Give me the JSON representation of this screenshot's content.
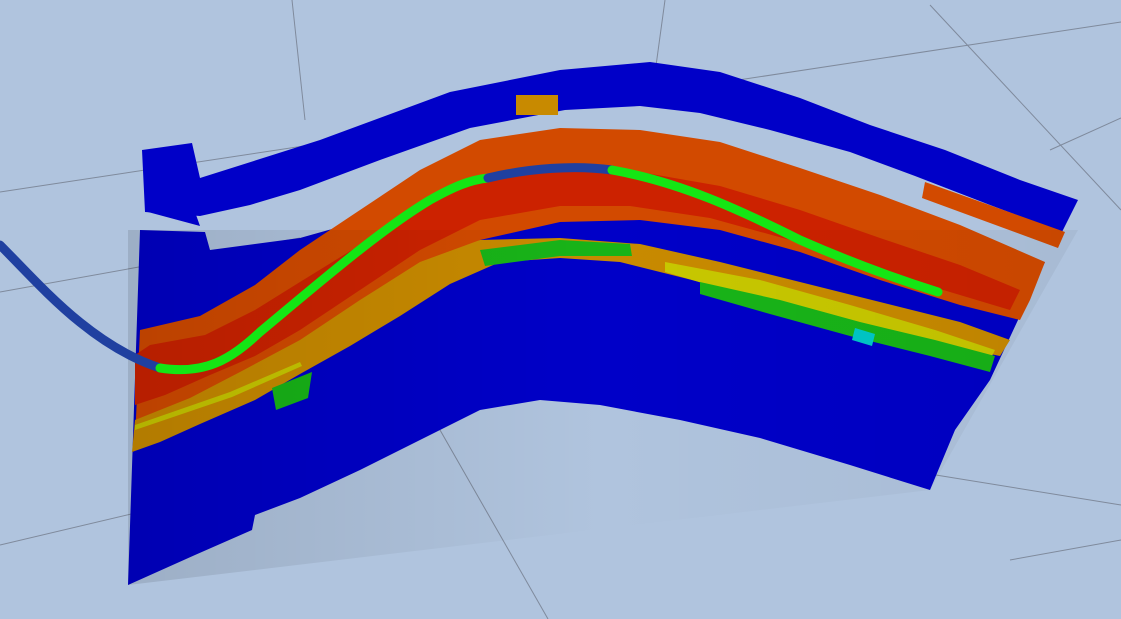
{
  "scene": {
    "background_color": "#b0c4de",
    "grid_line_color": "#7f8a9c",
    "colors": {
      "high": "#cc2200",
      "high_mid": "#d24a00",
      "mid": "#c88a00",
      "mid_low": "#c8c800",
      "low_mid": "#18b418",
      "low": "#0000c8",
      "cyan": "#00c8c8"
    },
    "well_path": {
      "out_of_zone_color": "#2040a0",
      "in_zone_color": "#14e614"
    }
  }
}
